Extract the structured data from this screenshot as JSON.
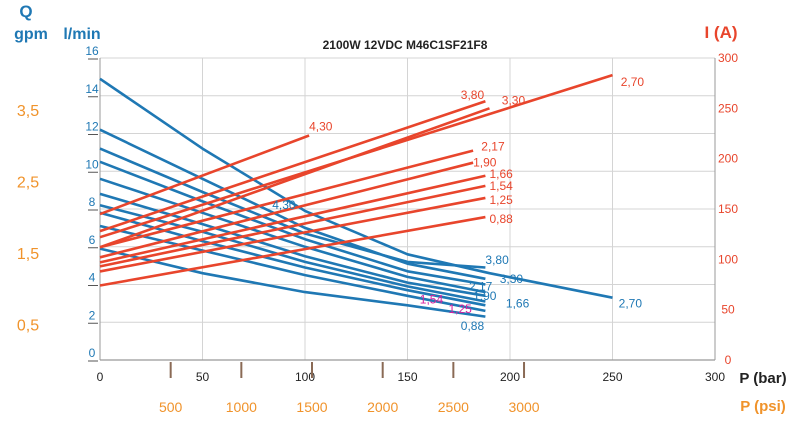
{
  "chart_data": {
    "type": "line",
    "title": "2100W 12VDC M46C1SF21F8",
    "left_axis": {
      "symbol": "Q",
      "unit_gpm": "gpm",
      "unit_lmin": "l/min",
      "lmin_ticks": [
        "0",
        "2",
        "4",
        "6",
        "8",
        "10",
        "12",
        "14",
        "16"
      ],
      "lmin_range": [
        0,
        16
      ],
      "gpm_ticks": [
        "0,5",
        "1,5",
        "2,5",
        "3,5"
      ],
      "gpm_values": [
        0.5,
        1.5,
        2.5,
        3.5
      ]
    },
    "right_axis": {
      "label": "I (A)",
      "ticks": [
        "0",
        "50",
        "100",
        "150",
        "200",
        "250",
        "300"
      ],
      "range": [
        0,
        300
      ]
    },
    "x_axis": {
      "label_bar": "P (bar)",
      "label_psi": "P (psi)",
      "bar_ticks": [
        "0",
        "50",
        "100",
        "150",
        "200",
        "250",
        "300"
      ],
      "bar_range": [
        0,
        300
      ],
      "psi_ticks": [
        "500",
        "1000",
        "1500",
        "2000",
        "2500",
        "3000"
      ],
      "psi_values": [
        500,
        1000,
        1500,
        2000,
        2500,
        3000
      ]
    },
    "grid": true,
    "flow_series": [
      {
        "name": "2,70",
        "points": [
          [
            0,
            14.9
          ],
          [
            50,
            11.2
          ],
          [
            100,
            7.9
          ],
          [
            150,
            5.6
          ],
          [
            190,
            4.6
          ],
          [
            250,
            3.3
          ]
        ],
        "label_pos": [
          253,
          3.0
        ],
        "color": "#1f78b4"
      },
      {
        "name": "3,30",
        "points": [
          [
            0,
            12.2
          ],
          [
            50,
            9.6
          ],
          [
            100,
            7.0
          ],
          [
            150,
            5.1
          ],
          [
            188,
            4.3
          ]
        ],
        "label_pos": [
          195,
          4.3
        ],
        "color": "#1f78b4"
      },
      {
        "name": "3,80",
        "points": [
          [
            0,
            11.2
          ],
          [
            50,
            8.9
          ],
          [
            100,
            6.7
          ],
          [
            150,
            5.2
          ],
          [
            188,
            4.9
          ]
        ],
        "label_pos": [
          188,
          5.3
        ],
        "color": "#1f78b4"
      },
      {
        "name": "4,30",
        "points": [
          [
            0,
            10.5
          ],
          [
            50,
            8.4
          ],
          [
            100,
            6.4
          ],
          [
            150,
            4.7
          ],
          [
            188,
            4.0
          ]
        ],
        "label_pos": [
          84,
          8.2
        ],
        "color": "#1f78b4"
      },
      {
        "name": "2,17",
        "points": [
          [
            0,
            9.6
          ],
          [
            50,
            7.8
          ],
          [
            100,
            6.0
          ],
          [
            150,
            4.4
          ],
          [
            188,
            3.6
          ]
        ],
        "label_pos": [
          180,
          3.9
        ],
        "color": "#1f78b4"
      },
      {
        "name": "1,90",
        "points": [
          [
            0,
            8.8
          ],
          [
            50,
            7.2
          ],
          [
            100,
            5.5
          ],
          [
            150,
            4.1
          ],
          [
            188,
            3.4
          ]
        ],
        "label_pos": [
          182,
          3.4
        ],
        "color": "#1f78b4"
      },
      {
        "name": "1,66",
        "points": [
          [
            0,
            8.2
          ],
          [
            50,
            6.8
          ],
          [
            100,
            5.2
          ],
          [
            150,
            3.9
          ],
          [
            188,
            3.1
          ]
        ],
        "label_pos": [
          198,
          3.0
        ],
        "color": "#1f78b4"
      },
      {
        "name": "1,54",
        "points": [
          [
            0,
            7.8
          ],
          [
            50,
            6.3
          ],
          [
            100,
            4.9
          ],
          [
            150,
            3.7
          ],
          [
            188,
            2.9
          ]
        ],
        "label_pos": [
          156,
          3.2
        ],
        "color": "#d6219f"
      },
      {
        "name": "1,25",
        "points": [
          [
            0,
            7.1
          ],
          [
            50,
            5.8
          ],
          [
            100,
            4.5
          ],
          [
            150,
            3.4
          ],
          [
            188,
            2.6
          ]
        ],
        "label_pos": [
          170,
          2.7
        ],
        "color": "#d6219f"
      },
      {
        "name": "0,88",
        "points": [
          [
            0,
            5.9
          ],
          [
            50,
            4.6
          ],
          [
            100,
            3.6
          ],
          [
            150,
            2.9
          ],
          [
            188,
            2.3
          ]
        ],
        "label_pos": [
          176,
          1.8
        ],
        "color": "#1f78b4"
      }
    ],
    "current_series": [
      {
        "name": "2,70",
        "start": [
          0,
          122
        ],
        "end": [
          250,
          283
        ],
        "label_pos": [
          254,
          276
        ]
      },
      {
        "name": "3,30",
        "start": [
          0,
          112
        ],
        "end": [
          190,
          250
        ],
        "label_pos": [
          196,
          258
        ]
      },
      {
        "name": "3,80",
        "start": [
          0,
          128
        ],
        "end": [
          188,
          257
        ],
        "label_pos": [
          176,
          263
        ]
      },
      {
        "name": "4,30",
        "start": [
          0,
          145
        ],
        "end": [
          102,
          223
        ],
        "label_pos": [
          102,
          232
        ]
      },
      {
        "name": "2,17",
        "start": [
          0,
          112
        ],
        "end": [
          182,
          208
        ],
        "label_pos": [
          186,
          212
        ]
      },
      {
        "name": "1,90",
        "start": [
          0,
          102
        ],
        "end": [
          182,
          196
        ],
        "label_pos": [
          182,
          196
        ]
      },
      {
        "name": "1,66",
        "start": [
          0,
          97
        ],
        "end": [
          188,
          183
        ],
        "label_pos": [
          190,
          185
        ]
      },
      {
        "name": "1,54",
        "start": [
          0,
          93
        ],
        "end": [
          188,
          173
        ],
        "label_pos": [
          190,
          173
        ]
      },
      {
        "name": "1,25",
        "start": [
          0,
          88
        ],
        "end": [
          188,
          161
        ],
        "label_pos": [
          190,
          159
        ]
      },
      {
        "name": "0,88",
        "start": [
          0,
          74
        ],
        "end": [
          188,
          142
        ],
        "label_pos": [
          190,
          140
        ]
      }
    ]
  }
}
